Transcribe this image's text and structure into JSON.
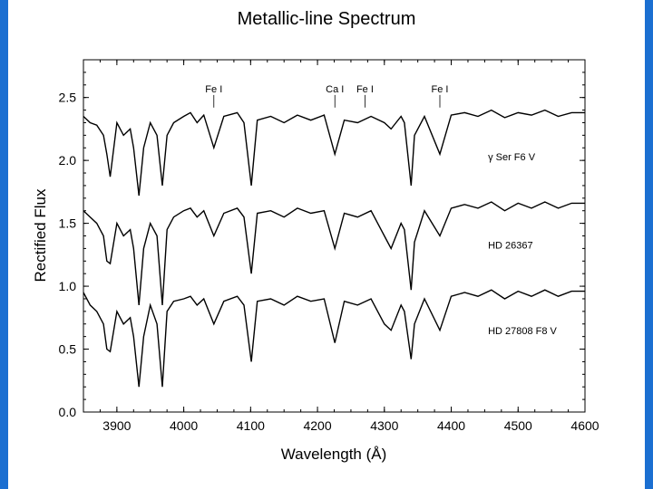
{
  "theme": {
    "accent": "#1b6fd1",
    "line_color": "#000000",
    "background": "#ffffff"
  },
  "slide": {
    "title": "Metallic-line Spectrum"
  },
  "chart_data": {
    "type": "line",
    "title": "Metallic-line Spectrum",
    "xlabel": "Wavelength (Å)",
    "ylabel": "Rectified Flux",
    "xlim": [
      3850,
      4600
    ],
    "ylim": [
      0.0,
      2.8
    ],
    "xticks": [
      "3900",
      "4000",
      "4100",
      "4200",
      "4300",
      "4400",
      "4500",
      "4600"
    ],
    "yticks": [
      "0.0",
      "0.5",
      "1.0",
      "1.5",
      "2.0",
      "2.5"
    ],
    "grid": false,
    "legend": "none",
    "series": [
      {
        "name": "γ Ser  F6 V",
        "x": [
          3850,
          3860,
          3870,
          3880,
          3885,
          3890,
          3900,
          3910,
          3920,
          3925,
          3933,
          3940,
          3950,
          3960,
          3968,
          3975,
          3985,
          4000,
          4010,
          4020,
          4030,
          4045,
          4060,
          4080,
          4090,
          4101,
          4110,
          4130,
          4150,
          4170,
          4190,
          4210,
          4226,
          4240,
          4260,
          4280,
          4300,
          4310,
          4325,
          4330,
          4340,
          4345,
          4360,
          4383,
          4400,
          4420,
          4440,
          4460,
          4480,
          4500,
          4520,
          4540,
          4560,
          4580,
          4600
        ],
        "values": [
          2.35,
          2.3,
          2.28,
          2.2,
          2.05,
          1.87,
          2.3,
          2.2,
          2.25,
          2.1,
          1.72,
          2.1,
          2.3,
          2.2,
          1.8,
          2.2,
          2.3,
          2.35,
          2.38,
          2.3,
          2.36,
          2.1,
          2.35,
          2.38,
          2.3,
          1.8,
          2.32,
          2.35,
          2.3,
          2.36,
          2.32,
          2.36,
          2.05,
          2.32,
          2.3,
          2.35,
          2.3,
          2.25,
          2.35,
          2.3,
          1.8,
          2.2,
          2.35,
          2.05,
          2.36,
          2.38,
          2.35,
          2.4,
          2.34,
          2.38,
          2.36,
          2.4,
          2.35,
          2.38,
          2.38
        ]
      },
      {
        "name": "HD 26367",
        "x": [
          3850,
          3860,
          3870,
          3880,
          3885,
          3890,
          3900,
          3910,
          3920,
          3925,
          3933,
          3940,
          3950,
          3960,
          3968,
          3975,
          3985,
          4000,
          4010,
          4020,
          4030,
          4045,
          4060,
          4080,
          4090,
          4101,
          4110,
          4130,
          4150,
          4170,
          4190,
          4210,
          4226,
          4240,
          4260,
          4280,
          4300,
          4310,
          4325,
          4330,
          4340,
          4345,
          4360,
          4383,
          4400,
          4420,
          4440,
          4460,
          4480,
          4500,
          4520,
          4540,
          4560,
          4580,
          4600
        ],
        "values": [
          1.6,
          1.55,
          1.5,
          1.4,
          1.2,
          1.18,
          1.5,
          1.4,
          1.45,
          1.3,
          0.85,
          1.3,
          1.5,
          1.4,
          0.85,
          1.45,
          1.55,
          1.6,
          1.62,
          1.55,
          1.6,
          1.4,
          1.58,
          1.62,
          1.55,
          1.1,
          1.58,
          1.6,
          1.55,
          1.62,
          1.58,
          1.6,
          1.3,
          1.58,
          1.55,
          1.6,
          1.4,
          1.3,
          1.5,
          1.45,
          0.97,
          1.35,
          1.6,
          1.4,
          1.62,
          1.65,
          1.62,
          1.67,
          1.6,
          1.66,
          1.62,
          1.67,
          1.62,
          1.66,
          1.66
        ]
      },
      {
        "name": "HD 27808  F8 V",
        "x": [
          3850,
          3860,
          3870,
          3880,
          3885,
          3890,
          3900,
          3910,
          3920,
          3925,
          3933,
          3940,
          3950,
          3960,
          3968,
          3975,
          3985,
          4000,
          4010,
          4020,
          4030,
          4045,
          4060,
          4080,
          4090,
          4101,
          4110,
          4130,
          4150,
          4170,
          4190,
          4210,
          4226,
          4240,
          4260,
          4280,
          4300,
          4310,
          4325,
          4330,
          4340,
          4345,
          4360,
          4383,
          4400,
          4420,
          4440,
          4460,
          4480,
          4500,
          4520,
          4540,
          4560,
          4580,
          4600
        ],
        "values": [
          0.95,
          0.85,
          0.8,
          0.7,
          0.5,
          0.48,
          0.8,
          0.7,
          0.75,
          0.6,
          0.2,
          0.6,
          0.85,
          0.7,
          0.2,
          0.8,
          0.88,
          0.9,
          0.92,
          0.85,
          0.9,
          0.7,
          0.88,
          0.92,
          0.85,
          0.4,
          0.88,
          0.9,
          0.85,
          0.92,
          0.88,
          0.9,
          0.55,
          0.88,
          0.85,
          0.9,
          0.7,
          0.65,
          0.85,
          0.8,
          0.42,
          0.7,
          0.9,
          0.65,
          0.92,
          0.95,
          0.92,
          0.97,
          0.9,
          0.96,
          0.92,
          0.97,
          0.92,
          0.96,
          0.96
        ]
      }
    ],
    "line_annotations": [
      {
        "label": "Fe I",
        "x": 4045
      },
      {
        "label": "Ca I",
        "x": 4226
      },
      {
        "label": "Fe I",
        "x": 4271
      },
      {
        "label": "Fe I",
        "x": 4383
      }
    ]
  }
}
